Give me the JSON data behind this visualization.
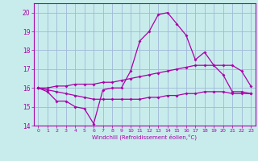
{
  "title": "",
  "xlabel": "Windchill (Refroidissement éolien,°C)",
  "bg_color": "#c8ecec",
  "grid_color": "#a0b8d8",
  "line_color": "#aa00aa",
  "xlim": [
    -0.5,
    23.5
  ],
  "ylim": [
    14,
    20.5
  ],
  "yticks": [
    14,
    15,
    16,
    17,
    18,
    19,
    20
  ],
  "xticks": [
    0,
    1,
    2,
    3,
    4,
    5,
    6,
    7,
    8,
    9,
    10,
    11,
    12,
    13,
    14,
    15,
    16,
    17,
    18,
    19,
    20,
    21,
    22,
    23
  ],
  "series": {
    "main": {
      "x": [
        0,
        1,
        2,
        3,
        4,
        5,
        6,
        7,
        8,
        9,
        10,
        11,
        12,
        13,
        14,
        15,
        16,
        17,
        18,
        19,
        20,
        21,
        22,
        23
      ],
      "y": [
        16.0,
        15.8,
        15.3,
        15.3,
        15.0,
        14.9,
        14.1,
        15.9,
        16.0,
        16.0,
        16.9,
        18.5,
        19.0,
        19.9,
        20.0,
        19.4,
        18.8,
        17.5,
        17.9,
        17.2,
        16.7,
        15.8,
        15.8,
        15.7
      ]
    },
    "upper": {
      "x": [
        0,
        1,
        2,
        3,
        4,
        5,
        6,
        7,
        8,
        9,
        10,
        11,
        12,
        13,
        14,
        15,
        16,
        17,
        18,
        19,
        20,
        21,
        22,
        23
      ],
      "y": [
        16.0,
        16.0,
        16.1,
        16.1,
        16.2,
        16.2,
        16.2,
        16.3,
        16.3,
        16.4,
        16.5,
        16.6,
        16.7,
        16.8,
        16.9,
        17.0,
        17.1,
        17.2,
        17.2,
        17.2,
        17.2,
        17.2,
        16.9,
        16.1
      ]
    },
    "lower": {
      "x": [
        0,
        1,
        2,
        3,
        4,
        5,
        6,
        7,
        8,
        9,
        10,
        11,
        12,
        13,
        14,
        15,
        16,
        17,
        18,
        19,
        20,
        21,
        22,
        23
      ],
      "y": [
        16.0,
        15.9,
        15.8,
        15.7,
        15.6,
        15.5,
        15.4,
        15.4,
        15.4,
        15.4,
        15.4,
        15.4,
        15.5,
        15.5,
        15.6,
        15.6,
        15.7,
        15.7,
        15.8,
        15.8,
        15.8,
        15.7,
        15.7,
        15.7
      ]
    }
  }
}
